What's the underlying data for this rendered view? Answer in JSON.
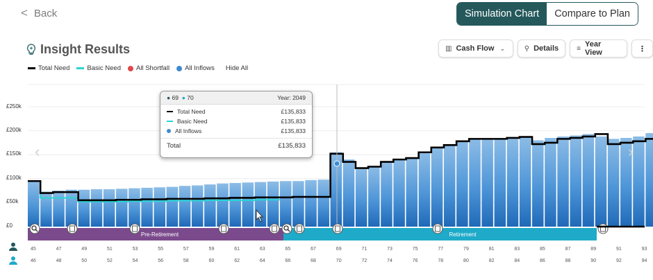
{
  "header": {
    "back_label": "Back",
    "simulation_chart_label": "Simulation Chart",
    "compare_label": "Compare to Plan"
  },
  "title": "Insight Results",
  "toolbar": {
    "cash_flow_label": "Cash Flow",
    "details_label": "Details",
    "year_view_label": "Year View",
    "more_label": "⋮"
  },
  "legend": {
    "total_need": "Total Need",
    "basic_need": "Basic Need",
    "all_shortfall": "All Shortfall",
    "all_inflows": "All Inflows",
    "hide_all": "Hide All"
  },
  "colors": {
    "total_need": "#000000",
    "basic_need": "#29d4d4",
    "shortfall": "#e0484c",
    "inflows": "#3f8ad0",
    "pre_retirement": "#7b4a8c",
    "retirement": "#1eaac8",
    "accent": "#24585b"
  },
  "y_axis": [
    "£250k",
    "£200k",
    "£150k",
    "£100k",
    "£50k",
    "£0"
  ],
  "tooltip": {
    "person1_age": "69",
    "person2_age": "70",
    "year": "Year: 2049",
    "total_need_label": "Total Need",
    "total_need_value": "£135,833",
    "basic_need_label": "Basic Need",
    "basic_need_value": "£135,833",
    "all_inflows_label": "All Inflows",
    "all_inflows_value": "£135,833",
    "total_label": "Total",
    "total_value": "£135,833"
  },
  "phases": {
    "pre_retirement": "Pre-Retirement",
    "retirement": "Retirement"
  },
  "ages_person1": [
    "45",
    "47",
    "49",
    "51",
    "53",
    "55",
    "57",
    "59",
    "61",
    "63",
    "65",
    "67",
    "69",
    "71",
    "73",
    "75",
    "77",
    "79",
    "81",
    "83",
    "85",
    "87",
    "89",
    "91",
    "93"
  ],
  "ages_person2": [
    "46",
    "48",
    "50",
    "52",
    "54",
    "56",
    "58",
    "60",
    "62",
    "64",
    "66",
    "68",
    "70",
    "72",
    "74",
    "76",
    "78",
    "80",
    "82",
    "84",
    "86",
    "88",
    "90",
    "92",
    "94"
  ],
  "chart_data": {
    "type": "bar",
    "unit": "£k",
    "ylim": [
      0,
      250
    ],
    "start_age": 45,
    "inflows": [
      95,
      73,
      75,
      77,
      77,
      78,
      78,
      79,
      80,
      81,
      82,
      83,
      85,
      86,
      88,
      90,
      91,
      92,
      93,
      94,
      95,
      95,
      97,
      98,
      155,
      140,
      120,
      125,
      135,
      140,
      143,
      155,
      165,
      170,
      178,
      183,
      183,
      183,
      185,
      187,
      180,
      185,
      188,
      190,
      193,
      188,
      183,
      185,
      188,
      195,
      190
    ],
    "total_need": [
      95,
      70,
      72,
      72,
      55,
      55,
      55,
      56,
      56,
      57,
      57,
      58,
      58,
      58,
      59,
      59,
      60,
      60,
      61,
      61,
      61,
      62,
      62,
      62,
      152,
      135,
      122,
      125,
      135,
      140,
      143,
      155,
      165,
      170,
      178,
      183,
      183,
      183,
      185,
      187,
      172,
      175,
      183,
      185,
      188,
      193,
      172,
      175,
      178,
      183,
      190
    ],
    "basic_need": [
      95,
      60,
      60,
      60,
      52,
      52,
      52,
      52,
      53,
      53,
      53,
      54,
      54,
      54,
      55,
      55,
      55,
      55,
      56,
      56,
      56,
      57,
      57,
      57,
      152,
      135,
      122,
      125,
      135,
      140,
      143,
      155,
      165,
      170,
      178,
      183,
      183,
      183,
      185,
      187,
      172,
      175,
      183,
      185,
      188,
      193,
      172,
      175,
      178,
      183,
      190
    ]
  }
}
